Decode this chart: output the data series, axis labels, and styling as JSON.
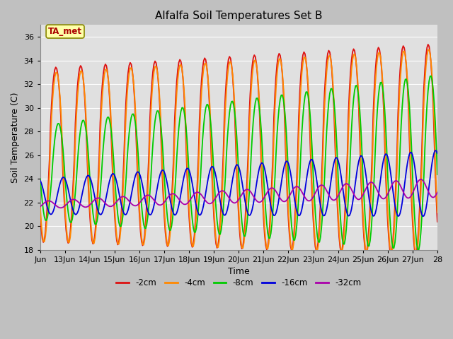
{
  "title": "Alfalfa Soil Temperatures Set B",
  "xlabel": "Time",
  "ylabel": "Soil Temperature (C)",
  "ylim": [
    18,
    37
  ],
  "xlim_start": 0,
  "xlim_end": 16.0,
  "x_tick_labels": [
    "Jun",
    "13Jun",
    "14Jun",
    "15Jun",
    "16Jun",
    "17Jun",
    "18Jun",
    "19Jun",
    "20Jun",
    "21Jun",
    "22Jun",
    "23Jun",
    "24Jun",
    "25Jun",
    "26Jun",
    "27Jun",
    "28"
  ],
  "x_tick_positions": [
    0,
    1,
    2,
    3,
    4,
    5,
    6,
    7,
    8,
    9,
    10,
    11,
    12,
    13,
    14,
    15,
    16
  ],
  "fig_bg_color": "#c0c0c0",
  "plot_bg_color": "#e0e0e0",
  "grid_color": "#ffffff",
  "line_colors": {
    "2cm": "#dd1111",
    "4cm": "#ff8800",
    "8cm": "#00cc00",
    "16cm": "#0000dd",
    "32cm": "#aa00aa"
  },
  "legend_labels": [
    "-2cm",
    "-4cm",
    "-8cm",
    "-16cm",
    "-32cm"
  ],
  "ta_met_label": "TA_met",
  "ta_met_bg": "#ffffaa",
  "ta_met_border": "#888800",
  "ta_met_color": "#aa0000",
  "yticks": [
    18,
    20,
    22,
    24,
    26,
    28,
    30,
    32,
    34,
    36
  ]
}
